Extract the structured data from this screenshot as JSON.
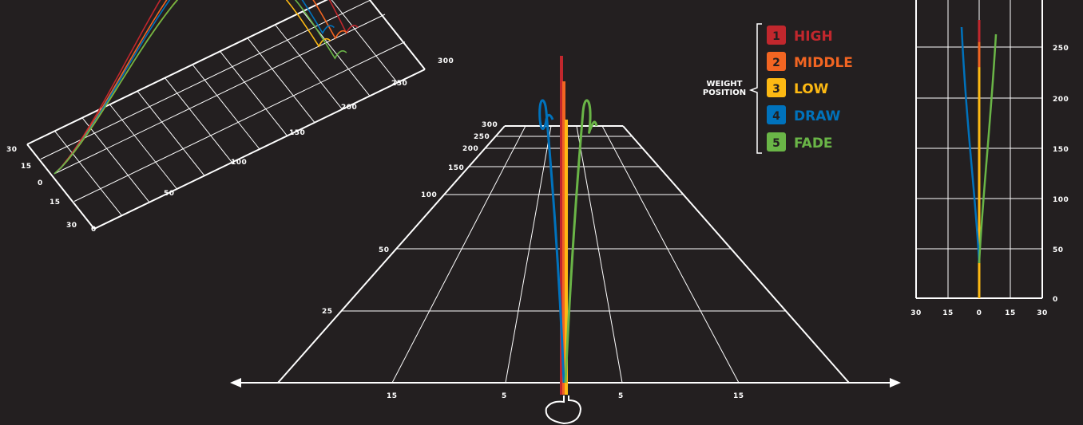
{
  "legend": {
    "title_line1": "WEIGHT",
    "title_line2": "POSITION",
    "items": [
      {
        "num": "1",
        "label": "HIGH",
        "color": "#c1272d"
      },
      {
        "num": "2",
        "label": "MIDDLE",
        "color": "#f26522"
      },
      {
        "num": "3",
        "label": "LOW",
        "color": "#fdb913"
      },
      {
        "num": "4",
        "label": "DRAW",
        "color": "#0072bc"
      },
      {
        "num": "5",
        "label": "FADE",
        "color": "#6ab547"
      }
    ]
  },
  "chart_data": [
    {
      "type": "line",
      "view": "3d-perspective",
      "distance_ticks": [
        "0",
        "50",
        "100",
        "150",
        "200",
        "250",
        "300"
      ],
      "lateral_ticks": [
        "30",
        "15",
        "0",
        "15",
        "30"
      ],
      "series": [
        {
          "name": "HIGH",
          "color": "#c1272d",
          "carry": 265,
          "lateral": 0
        },
        {
          "name": "MIDDLE",
          "color": "#f26522",
          "carry": 255,
          "lateral": 0
        },
        {
          "name": "LOW",
          "color": "#fdb913",
          "carry": 240,
          "lateral": 0
        },
        {
          "name": "DRAW",
          "color": "#0072bc",
          "carry": 250,
          "lateral": -8
        },
        {
          "name": "FADE",
          "color": "#6ab547",
          "carry": 245,
          "lateral": 8
        }
      ]
    },
    {
      "type": "line",
      "view": "down-range",
      "distance_ticks": [
        "25",
        "50",
        "100",
        "150",
        "200",
        "250",
        "300"
      ],
      "lateral_ticks": [
        "15",
        "5",
        "5",
        "15"
      ]
    },
    {
      "type": "line",
      "view": "top-down",
      "x_ticks": [
        "30",
        "15",
        "0",
        "15",
        "30"
      ],
      "y_ticks": [
        "0",
        "50",
        "100",
        "150",
        "200",
        "250"
      ],
      "ylim": [
        0,
        300
      ]
    }
  ]
}
